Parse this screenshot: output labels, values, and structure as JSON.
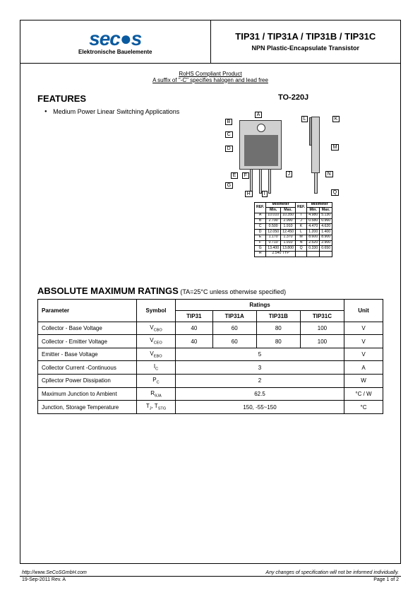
{
  "header": {
    "logo_text": "seᴄ●s",
    "logo_sub": "Elektronische Bauelemente",
    "product_title": "TIP31 / TIP31A / TIP31B / TIP31C",
    "product_subtitle": "NPN Plastic-Encapsulate Transistor"
  },
  "rohs": {
    "line1": "RoHS Compliant Product",
    "line2": "A suffix of \"-C\" specifies halogen and lead free"
  },
  "features": {
    "title": "FEATURES",
    "items": [
      "Medium Power Linear Switching Applications"
    ]
  },
  "package": {
    "label": "TO-220J",
    "dim_labels": [
      "A",
      "B",
      "C",
      "D",
      "E",
      "F",
      "G",
      "H",
      "I",
      "J",
      "K",
      "L",
      "M",
      "N",
      "Q"
    ],
    "dim_table": {
      "header": [
        "REF.",
        "Min.",
        "Max.",
        "REF.",
        "Min.",
        "Max."
      ],
      "header_group": "Millimeter",
      "rows": [
        [
          "A",
          "10.010",
          "10.350",
          "I",
          "4.980",
          "5.130"
        ],
        [
          "B",
          "2.790",
          "2.990",
          "J",
          "0.580",
          "0.960"
        ],
        [
          "C",
          "0.500",
          "1.910",
          "K",
          "4.470",
          "4.620"
        ],
        [
          "D",
          "12.050",
          "12.450",
          "L",
          "1.200",
          "1.400"
        ],
        [
          "E",
          "1.170",
          "1.370",
          "M",
          "8.600",
          "8.900"
        ],
        [
          "F",
          "0.710",
          "1.910",
          "N",
          "2.520",
          "2.900"
        ],
        [
          "G",
          "13.400",
          "13.800",
          "Q",
          "0.330",
          "0.650"
        ],
        [
          "H",
          "2.540 TYP",
          "",
          "",
          "",
          ""
        ]
      ]
    }
  },
  "ratings": {
    "title": "ABSOLUTE MAXIMUM RATINGS",
    "condition": "(TA=25°C unless otherwise specified)",
    "columns": {
      "parameter": "Parameter",
      "symbol": "Symbol",
      "ratings": "Ratings",
      "unit": "Unit",
      "variants": [
        "TIP31",
        "TIP31A",
        "TIP31B",
        "TIP31C"
      ]
    },
    "rows": [
      {
        "param": "Collector - Base Voltage",
        "symbol": "V_CBO",
        "values": [
          "40",
          "60",
          "80",
          "100"
        ],
        "span": false,
        "unit": "V"
      },
      {
        "param": "Collector - Emitter Voltage",
        "symbol": "V_CEO",
        "values": [
          "40",
          "60",
          "80",
          "100"
        ],
        "span": false,
        "unit": "V"
      },
      {
        "param": "Emitter - Base Voltage",
        "symbol": "V_EBO",
        "values": [
          "5"
        ],
        "span": true,
        "unit": "V"
      },
      {
        "param": "Collector Current -Continuous",
        "symbol": "I_C",
        "values": [
          "3"
        ],
        "span": true,
        "unit": "A"
      },
      {
        "param": "Cpllector Power Dissipation",
        "symbol": "P_C",
        "values": [
          "2"
        ],
        "span": true,
        "unit": "W"
      },
      {
        "param": "Maximum Junction to Ambient",
        "symbol": "R_θJA",
        "values": [
          "62.5"
        ],
        "span": true,
        "unit": "°C / W"
      },
      {
        "param": "Junction, Storage Temperature",
        "symbol": "T_J, T_STG",
        "values": [
          "150, -55~150"
        ],
        "span": true,
        "unit": "°C"
      }
    ]
  },
  "footer": {
    "url": "http://www.SeCoSGmbH.com",
    "disclaimer": "Any changes of specification will not be informed individually.",
    "date_rev": "19-Sep-2011 Rev. A",
    "page": "Page 1 of 2"
  },
  "colors": {
    "logo": "#0a5aa0",
    "border": "#000000",
    "package_body": "#d0d0d0",
    "package_inner": "#707070"
  }
}
